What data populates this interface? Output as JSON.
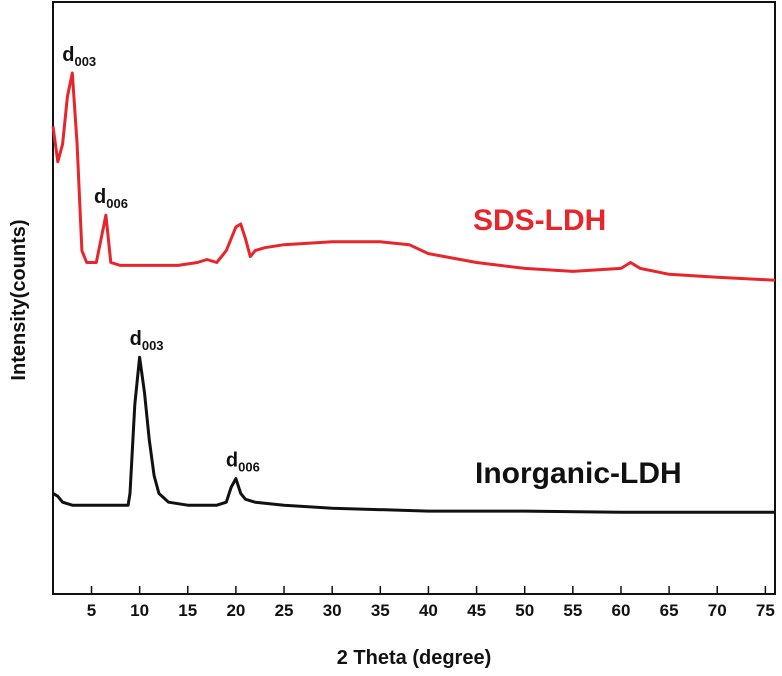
{
  "chart_data": {
    "type": "line",
    "title": "",
    "xlabel": "2 Theta (degree)",
    "ylabel": "Intensity(counts)",
    "xlim": [
      1,
      76
    ],
    "ylim": [
      0,
      1
    ],
    "xticks": [
      "5",
      "10",
      "15",
      "20",
      "25",
      "30",
      "35",
      "40",
      "45",
      "50",
      "55",
      "60",
      "65",
      "70",
      "75"
    ],
    "grid": false,
    "legend": "none",
    "series": [
      {
        "name": "SDS-LDH",
        "color": "#e8252b",
        "x": [
          1,
          1.5,
          2,
          2.5,
          3,
          3.5,
          4,
          4.5,
          5,
          5.5,
          6,
          6.5,
          7,
          8,
          10,
          12,
          14,
          16,
          17,
          18,
          19,
          19.5,
          20,
          20.5,
          21,
          21.5,
          22,
          23,
          25,
          30,
          35,
          38,
          40,
          45,
          50,
          55,
          60,
          61,
          62,
          65,
          70,
          76
        ],
        "y": [
          0.79,
          0.73,
          0.76,
          0.84,
          0.88,
          0.76,
          0.58,
          0.56,
          0.56,
          0.56,
          0.6,
          0.64,
          0.56,
          0.555,
          0.555,
          0.555,
          0.555,
          0.56,
          0.565,
          0.56,
          0.58,
          0.6,
          0.62,
          0.625,
          0.6,
          0.57,
          0.58,
          0.585,
          0.59,
          0.595,
          0.595,
          0.59,
          0.575,
          0.56,
          0.55,
          0.545,
          0.55,
          0.56,
          0.55,
          0.54,
          0.535,
          0.53
        ]
      },
      {
        "name": "Inorganic-LDH",
        "color": "#111111",
        "x": [
          1,
          1.5,
          2,
          3,
          5,
          8,
          8.8,
          9,
          9.5,
          10,
          10.5,
          11,
          11.5,
          12,
          13,
          15,
          17,
          18,
          19,
          19.5,
          20,
          20.5,
          21,
          22,
          25,
          30,
          40,
          50,
          60,
          70,
          76
        ],
        "y": [
          0.17,
          0.165,
          0.155,
          0.15,
          0.15,
          0.15,
          0.15,
          0.17,
          0.32,
          0.4,
          0.34,
          0.26,
          0.2,
          0.17,
          0.155,
          0.15,
          0.15,
          0.15,
          0.155,
          0.18,
          0.195,
          0.17,
          0.16,
          0.155,
          0.15,
          0.145,
          0.14,
          0.14,
          0.138,
          0.138,
          0.138
        ]
      }
    ],
    "annotations": [
      {
        "series": "SDS-LDH",
        "x": 3,
        "y": 0.88,
        "main": "d",
        "sub": "003"
      },
      {
        "series": "SDS-LDH",
        "x": 6.3,
        "y": 0.64,
        "main": "d",
        "sub": "006"
      },
      {
        "series": "Inorganic-LDH",
        "x": 10,
        "y": 0.4,
        "main": "d",
        "sub": "003"
      },
      {
        "series": "Inorganic-LDH",
        "x": 20,
        "y": 0.195,
        "main": "d",
        "sub": "006"
      }
    ]
  }
}
